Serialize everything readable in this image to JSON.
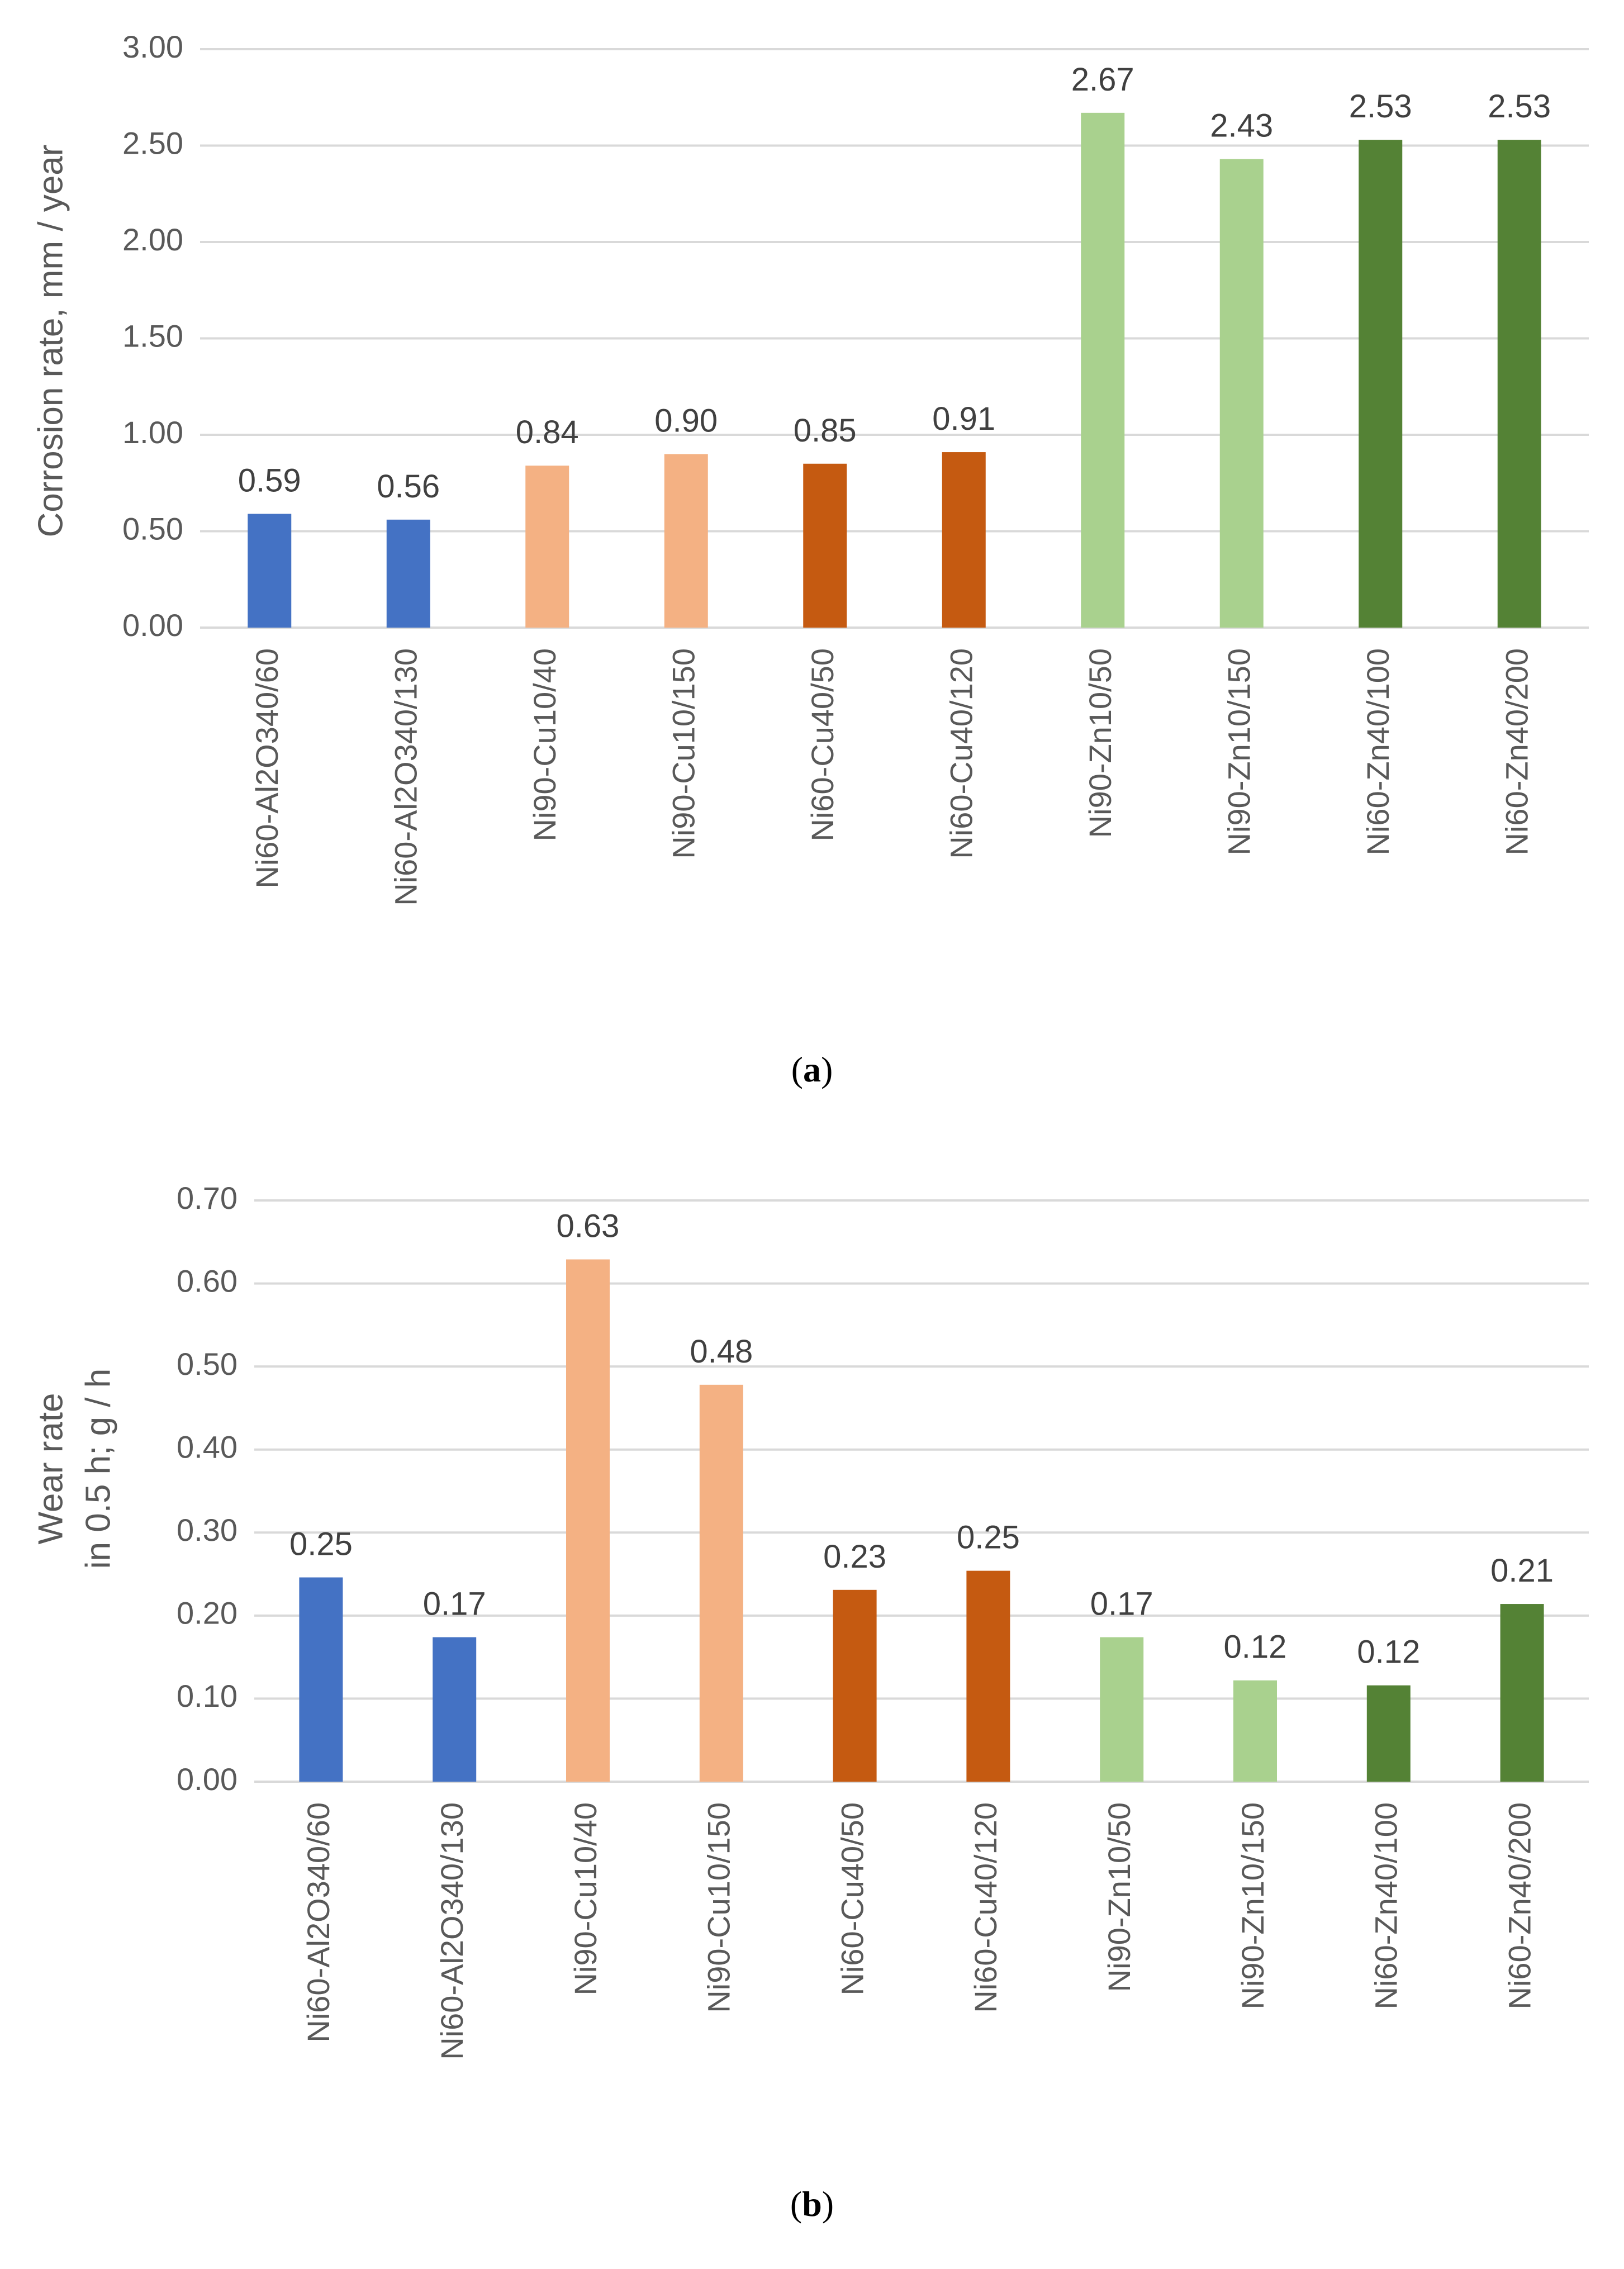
{
  "chart_data": [
    {
      "type": "bar",
      "panel_label": "a",
      "title": "",
      "xlabel": "",
      "ylabel": [
        "Corrosion rate, mm / year"
      ],
      "ylim": [
        0,
        3.0
      ],
      "yticks": [
        "0.00",
        "0.50",
        "1.00",
        "1.50",
        "2.00",
        "2.50",
        "3.00"
      ],
      "categories": [
        "Ni60-Al2O340/60",
        "Ni60-Al2O340/130",
        "Ni90-Cu10/40",
        "Ni90-Cu10/150",
        "Ni60-Cu40/50",
        "Ni60-Cu40/120",
        "Ni90-Zn10/50",
        "Ni90-Zn10/150",
        "Ni60-Zn40/100",
        "Ni60-Zn40/200"
      ],
      "values": [
        0.59,
        0.56,
        0.84,
        0.9,
        0.85,
        0.91,
        2.67,
        2.43,
        2.53,
        2.53
      ],
      "labels": [
        "0.59",
        "0.56",
        "0.84",
        "0.90",
        "0.85",
        "0.91",
        "2.67",
        "2.43",
        "2.53",
        "2.53"
      ],
      "colors": [
        "#4472c4",
        "#4472c4",
        "#f4b183",
        "#f4b183",
        "#c55a11",
        "#c55a11",
        "#a9d18e",
        "#a9d18e",
        "#548235",
        "#548235"
      ],
      "grid": true
    },
    {
      "type": "bar",
      "panel_label": "b",
      "title": "",
      "xlabel": "",
      "ylabel": [
        "Wear rate",
        "in 0.5 h; g / h"
      ],
      "ylim": [
        0,
        0.7
      ],
      "yticks": [
        "0.00",
        "0.10",
        "0.20",
        "0.30",
        "0.40",
        "0.50",
        "0.60",
        "0.70"
      ],
      "categories": [
        "Ni60-Al2O340/60",
        "Ni60-Al2O340/130",
        "Ni90-Cu10/40",
        "Ni90-Cu10/150",
        "Ni60-Cu40/50",
        "Ni60-Cu40/120",
        "Ni90-Zn10/50",
        "Ni90-Zn10/150",
        "Ni60-Zn40/100",
        "Ni60-Zn40/200"
      ],
      "values": [
        0.246,
        0.174,
        0.629,
        0.478,
        0.231,
        0.254,
        0.174,
        0.122,
        0.116,
        0.214
      ],
      "labels": [
        "0.25",
        "0.17",
        "0.63",
        "0.48",
        "0.23",
        "0.25",
        "0.17",
        "0.12",
        "0.12",
        "0.21"
      ],
      "colors": [
        "#4472c4",
        "#4472c4",
        "#f4b183",
        "#f4b183",
        "#c55a11",
        "#c55a11",
        "#a9d18e",
        "#a9d18e",
        "#548235",
        "#548235"
      ],
      "grid": true
    }
  ]
}
